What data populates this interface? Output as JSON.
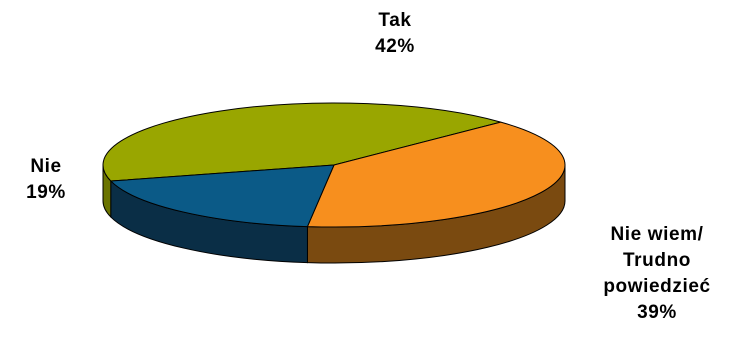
{
  "chart_data": {
    "type": "pie",
    "three_d": true,
    "slices": [
      {
        "name": "Tak",
        "value": 42,
        "value_label": "42%",
        "color": "#99A600",
        "side_color": "#6B7400"
      },
      {
        "name": "Nie wiem/ Trudno powiedzieć",
        "name_lines": [
          "Nie wiem/",
          "Trudno",
          "powiedzieć"
        ],
        "value": 39,
        "value_label": "39%",
        "color": "#F78F1E",
        "side_color": "#7A4A10"
      },
      {
        "name": "Nie",
        "value": 19,
        "value_label": "19%",
        "color": "#0B5A87",
        "side_color": "#0A2E46"
      }
    ],
    "legend": "none",
    "grid": false
  }
}
